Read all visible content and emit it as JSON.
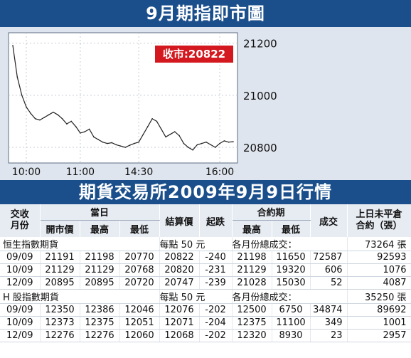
{
  "chart_banner": "9月期指即市圖",
  "close_label": "收市:20822",
  "accent": "#1b4f8c",
  "close_badge_color": "#d4181f",
  "chart_data": {
    "type": "line",
    "title": "",
    "xlabel": "",
    "ylabel": "",
    "ylim": [
      20740,
      21240
    ],
    "y_ticks": [
      21200,
      21000,
      20800
    ],
    "x_ticks": [
      "10:00",
      "11:00",
      "14:30",
      "16:00"
    ],
    "x": [
      "9:45",
      "9:50",
      "9:55",
      "10:00",
      "10:05",
      "10:10",
      "10:15",
      "10:20",
      "10:25",
      "10:30",
      "10:35",
      "10:40",
      "10:45",
      "10:50",
      "10:55",
      "11:00",
      "11:05",
      "11:10",
      "11:15",
      "11:20",
      "11:25",
      "11:30",
      "11:35",
      "11:40",
      "11:45",
      "11:50",
      "11:55",
      "12:00",
      "14:30",
      "14:35",
      "14:40",
      "14:45",
      "14:50",
      "14:55",
      "15:00",
      "15:05",
      "15:10",
      "15:15",
      "15:20",
      "15:25",
      "15:30",
      "15:35",
      "15:40",
      "15:45",
      "15:50",
      "15:55",
      "16:00",
      "16:05",
      "16:10",
      "16:15"
    ],
    "series": [
      {
        "values": [
          21191,
          21070,
          21000,
          20955,
          20930,
          20910,
          20905,
          20915,
          20925,
          20935,
          20925,
          20910,
          20890,
          20900,
          20880,
          20855,
          20860,
          20870,
          20840,
          20830,
          20820,
          20815,
          20818,
          20810,
          20805,
          20800,
          20808,
          20815,
          20820,
          20850,
          20880,
          20910,
          20900,
          20870,
          20840,
          20850,
          20860,
          20845,
          20815,
          20800,
          20790,
          20810,
          20815,
          20820,
          20810,
          20800,
          20815,
          20825,
          20820,
          20822
        ]
      }
    ]
  },
  "table_banner": "期貨交易所2009年9月9日行情",
  "headers": {
    "month": "交收\n月份",
    "today": "當日",
    "open": "開市價",
    "high": "最高",
    "low": "最低",
    "settle": "結算價",
    "change": "起跌",
    "contract_period": "合約期",
    "cp_high": "最高",
    "cp_low": "最低",
    "volume": "成交",
    "open_interest": "上日未平倉\n合約（張）"
  },
  "sections": [
    {
      "name": "恒生指數期貨",
      "per_point": "每點 50 元",
      "total_label": "各月份總成交：",
      "total_value": "73264 張",
      "rows": [
        [
          "09/09",
          "21191",
          "21198",
          "20770",
          "20822",
          "-240",
          "21198",
          "11650",
          "72587",
          "92593"
        ],
        [
          "10/09",
          "21129",
          "21129",
          "20768",
          "20820",
          "-231",
          "21129",
          "19320",
          "606",
          "1076"
        ],
        [
          "12/09",
          "20895",
          "20895",
          "20720",
          "20747",
          "-239",
          "21028",
          "15030",
          "52",
          "4087"
        ]
      ]
    },
    {
      "name": "H 股指數期貨",
      "per_point": "每點 50 元",
      "total_label": "各月份總成交：",
      "total_value": "35250 張",
      "rows": [
        [
          "09/09",
          "12350",
          "12386",
          "12046",
          "12076",
          "-202",
          "12500",
          "6750",
          "34874",
          "89692"
        ],
        [
          "10/09",
          "12373",
          "12375",
          "12051",
          "12071",
          "-204",
          "12375",
          "11100",
          "349",
          "1001"
        ],
        [
          "12/09",
          "12276",
          "12276",
          "12060",
          "12068",
          "-202",
          "12320",
          "8930",
          "23",
          "2957"
        ]
      ]
    }
  ]
}
